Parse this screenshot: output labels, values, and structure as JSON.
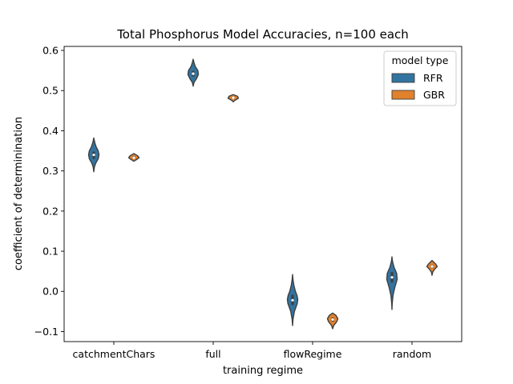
{
  "chart_data": {
    "type": "violin",
    "title": "Total Phosphorus Model Accuracies, n=100 each",
    "xlabel": "training regime",
    "ylabel": "coefficient of determinination",
    "categories": [
      "catchmentChars",
      "full",
      "flowRegime",
      "random"
    ],
    "ylim": [
      -0.125,
      0.61
    ],
    "yticks": [
      -0.1,
      0.0,
      0.1,
      0.2,
      0.3,
      0.4,
      0.5,
      0.6
    ],
    "ytick_labels": [
      "−0.1",
      "0.0",
      "0.1",
      "0.2",
      "0.3",
      "0.4",
      "0.5",
      "0.6"
    ],
    "legend": {
      "title": "model type",
      "position": "upper right"
    },
    "series": [
      {
        "name": "RFR",
        "color": "#3274a1",
        "violins": [
          {
            "min": 0.298,
            "max": 0.382,
            "q1": 0.33,
            "median": 0.34,
            "q3": 0.348,
            "profile": [
              [
                0.298,
                0.0
              ],
              [
                0.31,
                0.12
              ],
              [
                0.32,
                0.4
              ],
              [
                0.33,
                0.85
              ],
              [
                0.34,
                1.0
              ],
              [
                0.35,
                0.85
              ],
              [
                0.36,
                0.45
              ],
              [
                0.37,
                0.2
              ],
              [
                0.382,
                0.0
              ]
            ]
          },
          {
            "min": 0.511,
            "max": 0.578,
            "q1": 0.535,
            "median": 0.542,
            "q3": 0.549,
            "profile": [
              [
                0.511,
                0.0
              ],
              [
                0.52,
                0.15
              ],
              [
                0.53,
                0.65
              ],
              [
                0.54,
                1.0
              ],
              [
                0.55,
                0.9
              ],
              [
                0.56,
                0.4
              ],
              [
                0.57,
                0.15
              ],
              [
                0.578,
                0.0
              ]
            ]
          },
          {
            "min": -0.085,
            "max": 0.042,
            "q1": -0.034,
            "median": -0.022,
            "q3": -0.008,
            "profile": [
              [
                -0.085,
                0.0
              ],
              [
                -0.07,
                0.08
              ],
              [
                -0.05,
                0.35
              ],
              [
                -0.03,
                0.9
              ],
              [
                -0.02,
                1.0
              ],
              [
                -0.01,
                0.85
              ],
              [
                0.0,
                0.55
              ],
              [
                0.015,
                0.25
              ],
              [
                0.03,
                0.08
              ],
              [
                0.042,
                0.0
              ]
            ]
          },
          {
            "min": -0.045,
            "max": 0.086,
            "q1": 0.022,
            "median": 0.035,
            "q3": 0.048,
            "profile": [
              [
                -0.045,
                0.0
              ],
              [
                -0.03,
                0.05
              ],
              [
                -0.01,
                0.2
              ],
              [
                0.01,
                0.55
              ],
              [
                0.03,
                1.0
              ],
              [
                0.045,
                0.9
              ],
              [
                0.06,
                0.4
              ],
              [
                0.075,
                0.1
              ],
              [
                0.086,
                0.0
              ]
            ]
          }
        ]
      },
      {
        "name": "GBR",
        "color": "#e1812c",
        "violins": [
          {
            "min": 0.324,
            "max": 0.343,
            "q1": 0.33,
            "median": 0.333,
            "q3": 0.337,
            "profile": [
              [
                0.324,
                0.0
              ],
              [
                0.328,
                0.5
              ],
              [
                0.333,
                1.0
              ],
              [
                0.338,
                0.7
              ],
              [
                0.343,
                0.0
              ]
            ]
          },
          {
            "min": 0.472,
            "max": 0.49,
            "q1": 0.479,
            "median": 0.482,
            "q3": 0.485,
            "profile": [
              [
                0.472,
                0.0
              ],
              [
                0.476,
                0.35
              ],
              [
                0.481,
                1.0
              ],
              [
                0.486,
                0.8
              ],
              [
                0.49,
                0.0
              ]
            ]
          },
          {
            "min": -0.093,
            "max": -0.054,
            "q1": -0.075,
            "median": -0.07,
            "q3": -0.065,
            "profile": [
              [
                -0.093,
                0.0
              ],
              [
                -0.085,
                0.2
              ],
              [
                -0.075,
                0.8
              ],
              [
                -0.068,
                1.0
              ],
              [
                -0.06,
                0.65
              ],
              [
                -0.054,
                0.0
              ]
            ]
          },
          {
            "min": 0.04,
            "max": 0.077,
            "q1": 0.058,
            "median": 0.062,
            "q3": 0.066,
            "profile": [
              [
                0.04,
                0.0
              ],
              [
                0.048,
                0.12
              ],
              [
                0.056,
                0.55
              ],
              [
                0.062,
                1.0
              ],
              [
                0.068,
                0.7
              ],
              [
                0.077,
                0.0
              ]
            ]
          }
        ]
      }
    ]
  }
}
